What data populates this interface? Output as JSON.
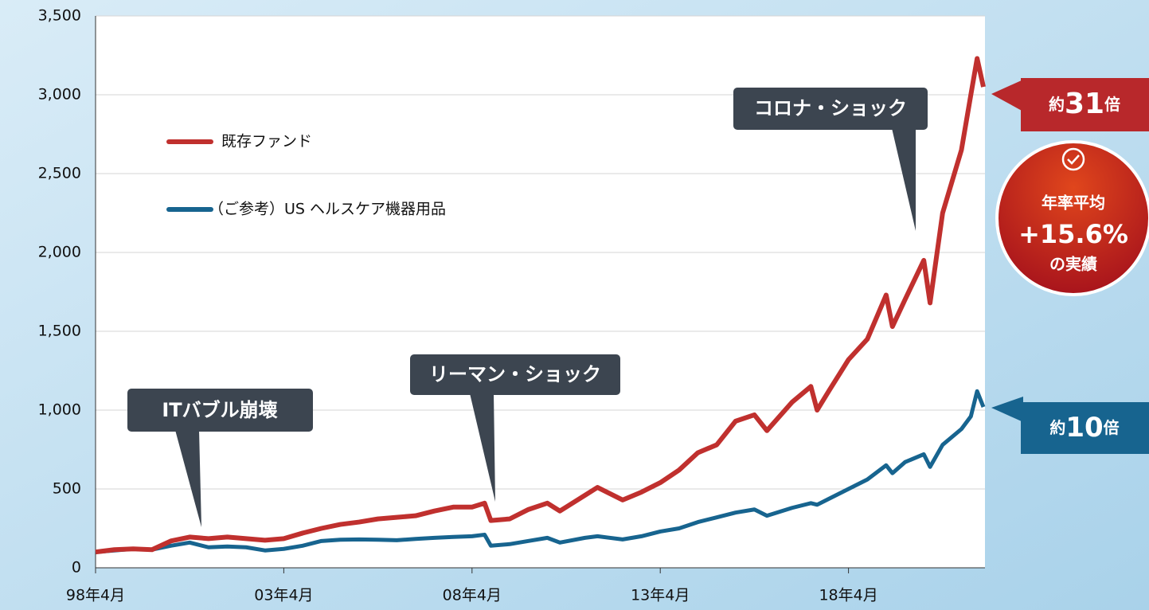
{
  "chart_data": {
    "type": "line",
    "x": [
      0,
      6,
      12,
      18,
      24,
      30,
      36,
      42,
      48,
      54,
      60,
      66,
      72,
      78,
      84,
      90,
      96,
      102,
      108,
      114,
      120,
      124,
      126,
      132,
      138,
      144,
      148,
      156,
      160,
      168,
      174,
      180,
      186,
      192,
      198,
      204,
      210,
      214,
      222,
      228,
      230,
      234,
      240,
      246,
      252,
      254,
      258,
      264,
      266,
      270,
      276,
      279,
      281,
      283
    ],
    "series": [
      {
        "name": "既存ファンド",
        "color": "#c0302e",
        "values": [
          100,
          115,
          120,
          115,
          170,
          195,
          185,
          195,
          185,
          175,
          185,
          220,
          250,
          275,
          290,
          310,
          320,
          330,
          360,
          385,
          385,
          410,
          300,
          310,
          370,
          410,
          360,
          460,
          510,
          430,
          480,
          540,
          620,
          730,
          780,
          930,
          970,
          870,
          1050,
          1150,
          1000,
          1130,
          1320,
          1450,
          1730,
          1530,
          1700,
          1950,
          1680,
          2250,
          2650,
          3000,
          3230,
          3050
        ]
      },
      {
        "name": "（ご参考）US ヘルスケア機器用品",
        "color": "#17648f",
        "values": [
          100,
          110,
          120,
          115,
          140,
          160,
          130,
          135,
          130,
          110,
          120,
          140,
          170,
          178,
          180,
          178,
          175,
          183,
          190,
          196,
          200,
          210,
          140,
          150,
          170,
          190,
          160,
          190,
          200,
          180,
          200,
          230,
          250,
          290,
          320,
          350,
          370,
          330,
          380,
          410,
          400,
          440,
          500,
          560,
          650,
          600,
          670,
          720,
          640,
          780,
          880,
          960,
          1120,
          1020
        ]
      }
    ],
    "xlim": [
      0,
      283.5
    ],
    "xticks": [
      {
        "value": 0,
        "label": "98年4月"
      },
      {
        "value": 60,
        "label": "03年4月"
      },
      {
        "value": 120,
        "label": "08年4月"
      },
      {
        "value": 180,
        "label": "13年4月"
      },
      {
        "value": 240,
        "label": "18年4月"
      }
    ],
    "ylim": [
      0,
      3500
    ],
    "yticks": [
      0,
      {
        "value": 500,
        "label": "500"
      },
      {
        "value": 1000,
        "label": "1,000"
      },
      {
        "value": 1500,
        "label": "1,500"
      },
      {
        "value": 2000,
        "label": "2,000"
      },
      {
        "value": 2500,
        "label": "2,500"
      },
      {
        "value": 3000,
        "label": "3,000"
      },
      {
        "value": 3500,
        "label": "3,500"
      }
    ],
    "grid": true,
    "annotations": [
      "ITバブル崩壊",
      "リーマン・ショック",
      "コロナ・ショック"
    ],
    "end_labels": [
      {
        "prefix": "約",
        "number": "31",
        "suffix": "倍"
      },
      {
        "prefix": "約",
        "number": "10",
        "suffix": "倍"
      }
    ],
    "badge": [
      "年率平均",
      "+15.6%",
      "の実績"
    ]
  }
}
